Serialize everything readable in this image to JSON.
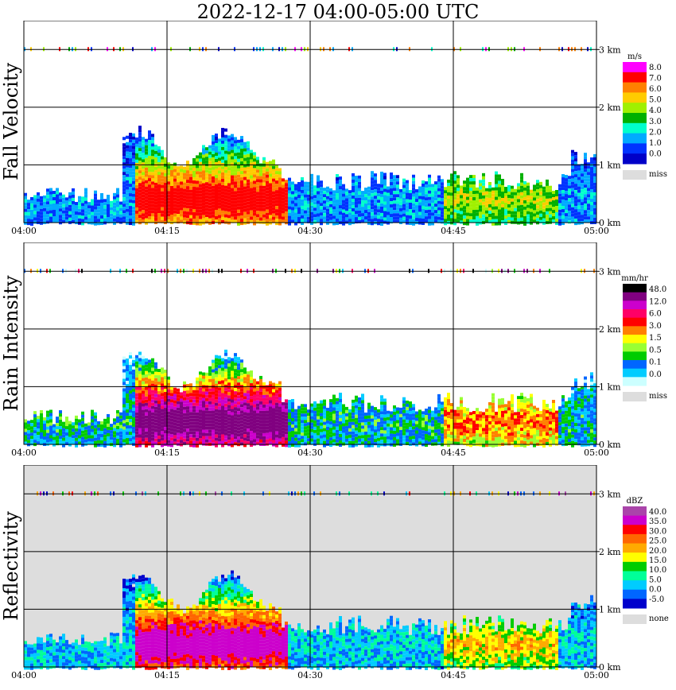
{
  "title": "2022-12-17   04:00-05:00 UTC",
  "colors": {
    "miss": "#dddddd",
    "grid": "#000000"
  },
  "chart_data": [
    {
      "type": "heatmap",
      "ylabel": "Fall Velocity",
      "x_ticks": [
        "04:00",
        "04:15",
        "04:30",
        "04:45",
        "05:00"
      ],
      "y_ticks": [
        "0 km",
        "1 km",
        "2 km",
        "3 km"
      ],
      "ylim": [
        0,
        3.5
      ],
      "legend": {
        "unit": "m/s",
        "labels": [
          "8.0",
          "7.0",
          "6.0",
          "5.0",
          "4.0",
          "3.0",
          "2.0",
          "1.0",
          "0.0"
        ],
        "colors": [
          "#ff00ff",
          "#ff0000",
          "#ff8000",
          "#ffcc00",
          "#a0f000",
          "#00b000",
          "#00ffcc",
          "#00aaff",
          "#0033ff",
          "#0000c8"
        ],
        "miss_label": "miss"
      },
      "background": "#ffffff"
    },
    {
      "type": "heatmap",
      "ylabel": "Rain Intensity",
      "x_ticks": [
        "04:00",
        "04:15",
        "04:30",
        "04:45",
        "05:00"
      ],
      "y_ticks": [
        "0 km",
        "1 km",
        "2 km",
        "3 km"
      ],
      "ylim": [
        0,
        3.5
      ],
      "legend": {
        "unit": "mm/hr",
        "labels": [
          "48.0",
          "12.0",
          "6.0",
          "3.0",
          "1.5",
          "0.5",
          "0.1",
          "0.0"
        ],
        "colors": [
          "#000000",
          "#800080",
          "#cc00cc",
          "#ff0066",
          "#ff0000",
          "#ff8000",
          "#ffff00",
          "#99ff33",
          "#00cc00",
          "#0066ff",
          "#00ccff",
          "#ccffff"
        ],
        "miss_label": "miss"
      },
      "background": "#ffffff"
    },
    {
      "type": "heatmap",
      "ylabel": "Reflectivity",
      "x_ticks": [
        "04:00",
        "04:15",
        "04:30",
        "04:45",
        "05:00"
      ],
      "y_ticks": [
        "0 km",
        "1 km",
        "2 km",
        "3 km"
      ],
      "ylim": [
        0,
        3.5
      ],
      "legend": {
        "unit": "dBZ",
        "labels": [
          "40.0",
          "35.0",
          "30.0",
          "25.0",
          "20.0",
          "15.0",
          "10.0",
          "5.0",
          "0.0",
          "-5.0"
        ],
        "colors": [
          "#aa44aa",
          "#cc00cc",
          "#ff0000",
          "#ff6600",
          "#ffaa00",
          "#ffff00",
          "#00cc00",
          "#00ff99",
          "#00ccff",
          "#0066ff",
          "#0000cc"
        ],
        "miss_label": "none"
      },
      "background": "#dddddd"
    }
  ]
}
